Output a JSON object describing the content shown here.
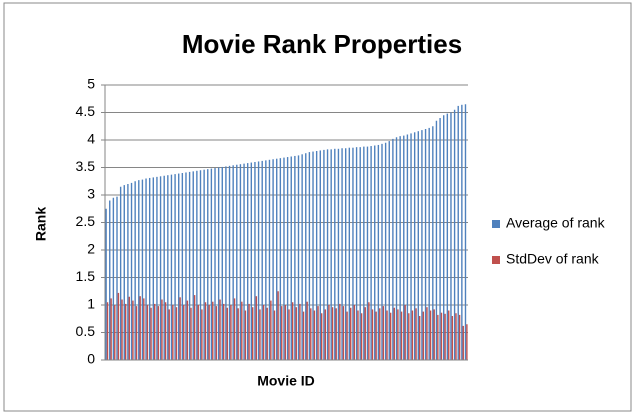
{
  "chart_data": {
    "type": "bar",
    "title": "Movie Rank Properties",
    "x_label": "Movie ID",
    "y_label": "Rank",
    "categories": [
      null,
      null,
      null,
      null,
      null,
      null,
      null,
      null,
      null,
      null,
      null,
      null,
      null,
      null,
      null,
      null,
      null,
      null,
      null,
      null,
      null,
      null,
      null,
      null,
      null,
      null,
      null,
      null,
      null,
      null,
      null,
      null,
      null,
      null,
      null,
      null,
      null,
      null,
      null,
      null,
      null,
      null,
      null,
      null,
      null,
      null,
      null,
      null,
      null,
      null,
      null,
      null,
      null,
      null,
      null,
      null,
      null,
      null,
      null,
      null,
      null,
      null,
      null,
      null,
      null,
      null,
      null,
      null,
      null,
      null,
      null,
      null,
      null,
      null,
      null,
      null,
      null,
      null,
      null,
      null,
      null,
      null,
      null,
      null,
      null,
      null,
      null,
      null,
      null,
      null,
      null,
      null,
      null,
      null,
      null,
      null,
      null,
      null,
      null,
      null
    ],
    "series": [
      {
        "name": "Average of rank",
        "color": "#4f81bd",
        "values": [
          2.75,
          2.9,
          2.95,
          2.97,
          3.15,
          3.18,
          3.2,
          3.22,
          3.25,
          3.27,
          3.28,
          3.3,
          3.31,
          3.32,
          3.33,
          3.34,
          3.35,
          3.36,
          3.37,
          3.38,
          3.39,
          3.4,
          3.41,
          3.42,
          3.43,
          3.44,
          3.45,
          3.46,
          3.47,
          3.48,
          3.49,
          3.5,
          3.51,
          3.52,
          3.53,
          3.54,
          3.55,
          3.56,
          3.57,
          3.58,
          3.59,
          3.6,
          3.61,
          3.62,
          3.63,
          3.64,
          3.65,
          3.66,
          3.67,
          3.68,
          3.69,
          3.7,
          3.71,
          3.72,
          3.74,
          3.76,
          3.78,
          3.79,
          3.8,
          3.81,
          3.82,
          3.83,
          3.83,
          3.84,
          3.84,
          3.85,
          3.85,
          3.86,
          3.86,
          3.87,
          3.87,
          3.88,
          3.88,
          3.89,
          3.9,
          3.91,
          3.93,
          3.95,
          3.98,
          4.02,
          4.05,
          4.07,
          4.08,
          4.1,
          4.12,
          4.14,
          4.16,
          4.18,
          4.2,
          4.22,
          4.25,
          4.35,
          4.4,
          4.45,
          4.48,
          4.5,
          4.55,
          4.62,
          4.64,
          4.65
        ]
      },
      {
        "name": "StdDev of rank",
        "color": "#c0504d",
        "values": [
          1.05,
          1.12,
          1.0,
          1.22,
          1.1,
          1.02,
          1.15,
          1.08,
          0.98,
          1.16,
          1.12,
          1.0,
          0.95,
          1.02,
          0.98,
          1.1,
          1.05,
          0.92,
          1.0,
          0.96,
          1.14,
          1.0,
          1.08,
          0.95,
          1.18,
          1.0,
          0.92,
          1.05,
          1.0,
          1.06,
          0.98,
          1.1,
          1.02,
          0.95,
          1.0,
          1.12,
          0.94,
          1.06,
          0.9,
          1.02,
          0.96,
          1.16,
          0.92,
          1.0,
          0.95,
          1.08,
          0.9,
          1.25,
          0.98,
          1.0,
          0.92,
          1.05,
          0.96,
          1.02,
          0.88,
          1.06,
          0.94,
          0.9,
          0.98,
          0.85,
          0.92,
          1.0,
          0.96,
          0.94,
          1.02,
          0.98,
          0.88,
          0.95,
          1.0,
          0.9,
          0.85,
          0.96,
          1.05,
          0.92,
          0.88,
          0.94,
          0.98,
          0.9,
          0.86,
          0.95,
          0.92,
          0.88,
          1.0,
          0.85,
          0.9,
          0.94,
          0.8,
          0.88,
          0.96,
          0.9,
          0.92,
          0.82,
          0.86,
          0.84,
          0.9,
          0.8,
          0.85,
          0.82,
          0.62,
          0.65
        ]
      }
    ],
    "ylim": [
      0,
      5
    ],
    "yticks": [
      0,
      0.5,
      1,
      1.5,
      2,
      2.5,
      3,
      3.5,
      4,
      4.5,
      5
    ],
    "grid": true,
    "legend": "right"
  }
}
